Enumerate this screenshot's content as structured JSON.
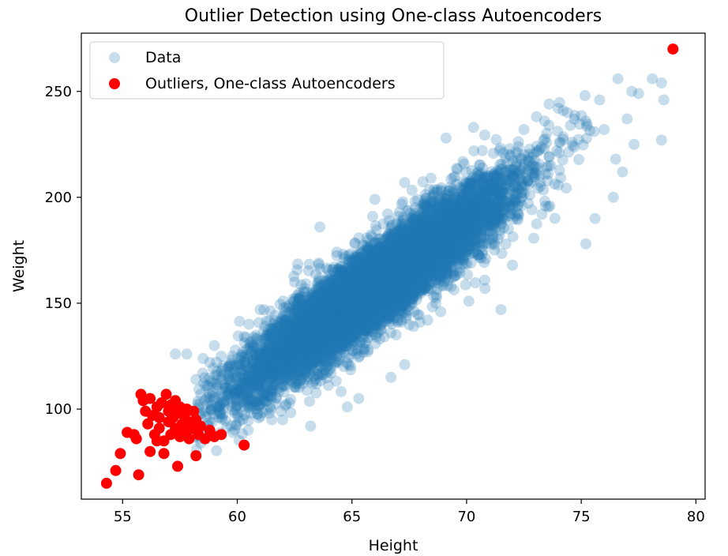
{
  "chart_data": {
    "type": "scatter",
    "title": "Outlier Detection using One-class Autoencoders",
    "xlabel": "Height",
    "ylabel": "Weight",
    "xlim": [
      53.2,
      80.4
    ],
    "ylim": [
      57.5,
      277.5
    ],
    "xticks": [
      55,
      60,
      65,
      70,
      75,
      80
    ],
    "yticks": [
      100,
      150,
      200,
      250
    ],
    "grid": false,
    "legend_position": "top-left",
    "series": [
      {
        "name": "Data",
        "color": "#1f77b4",
        "alpha": 0.25,
        "trend": {
          "slope": 7.7,
          "intercept": -350,
          "residual_sd": 10
        },
        "point_count": 8500,
        "points": [
          [
            57.3,
            126
          ],
          [
            57.8,
            126
          ],
          [
            58.2,
            114
          ],
          [
            58.5,
            117
          ],
          [
            58.8,
            122
          ],
          [
            59.0,
            130
          ],
          [
            59.3,
            125
          ],
          [
            58.6,
            99
          ],
          [
            59.2,
            96
          ],
          [
            59.8,
            89
          ],
          [
            60.2,
            110
          ],
          [
            60.6,
            98
          ],
          [
            61.0,
            147
          ],
          [
            61.5,
            95
          ],
          [
            62.0,
            151
          ],
          [
            62.5,
            160
          ],
          [
            63.2,
            92
          ],
          [
            63.6,
            186
          ],
          [
            64.8,
            101
          ],
          [
            65.3,
            105
          ],
          [
            65.9,
            191
          ],
          [
            66.0,
            199
          ],
          [
            66.7,
            115
          ],
          [
            67.3,
            121
          ],
          [
            67.3,
            207
          ],
          [
            68.3,
            142
          ],
          [
            69.1,
            228
          ],
          [
            70.1,
            151
          ],
          [
            70.3,
            233
          ],
          [
            70.8,
            157
          ],
          [
            71.5,
            147
          ],
          [
            72.0,
            168
          ],
          [
            72.5,
            232
          ],
          [
            73.4,
            236
          ],
          [
            73.6,
            244
          ],
          [
            74.0,
            242
          ],
          [
            74.4,
            240
          ],
          [
            74.6,
            226
          ],
          [
            75.2,
            178
          ],
          [
            75.6,
            190
          ],
          [
            75.8,
            246
          ],
          [
            76.0,
            232
          ],
          [
            76.4,
            200
          ],
          [
            76.5,
            218
          ],
          [
            76.6,
            256
          ],
          [
            76.8,
            212
          ],
          [
            77.0,
            237
          ],
          [
            77.2,
            250
          ],
          [
            77.5,
            249
          ],
          [
            77.3,
            225
          ],
          [
            78.1,
            256
          ],
          [
            78.5,
            227
          ],
          [
            78.6,
            246
          ],
          [
            78.5,
            254
          ]
        ]
      },
      {
        "name": "Outliers, One-class Autoencoders",
        "color": "#ff0000",
        "alpha": 1,
        "points": [
          [
            54.3,
            65
          ],
          [
            54.7,
            71
          ],
          [
            54.9,
            79
          ],
          [
            55.2,
            89
          ],
          [
            55.5,
            88
          ],
          [
            55.6,
            86
          ],
          [
            55.7,
            69
          ],
          [
            55.8,
            107
          ],
          [
            55.9,
            104
          ],
          [
            56.0,
            99
          ],
          [
            56.1,
            93
          ],
          [
            56.2,
            80
          ],
          [
            56.2,
            105
          ],
          [
            56.3,
            97
          ],
          [
            56.4,
            88
          ],
          [
            56.5,
            85
          ],
          [
            56.5,
            101
          ],
          [
            56.6,
            91
          ],
          [
            56.6,
            96
          ],
          [
            56.7,
            103
          ],
          [
            56.8,
            85
          ],
          [
            56.8,
            79
          ],
          [
            56.9,
            107
          ],
          [
            57.0,
            94
          ],
          [
            57.0,
            99
          ],
          [
            57.1,
            88
          ],
          [
            57.1,
            102
          ],
          [
            57.2,
            96
          ],
          [
            57.3,
            91
          ],
          [
            57.3,
            104
          ],
          [
            57.4,
            73
          ],
          [
            57.4,
            98
          ],
          [
            57.5,
            87
          ],
          [
            57.5,
            101
          ],
          [
            57.6,
            93
          ],
          [
            57.7,
            97
          ],
          [
            57.7,
            89
          ],
          [
            57.8,
            100
          ],
          [
            57.9,
            86
          ],
          [
            57.9,
            94
          ],
          [
            58.0,
            91
          ],
          [
            58.1,
            99
          ],
          [
            58.2,
            78
          ],
          [
            58.2,
            95
          ],
          [
            58.3,
            88
          ],
          [
            58.4,
            92
          ],
          [
            58.6,
            86
          ],
          [
            58.8,
            90
          ],
          [
            59.0,
            87
          ],
          [
            59.3,
            88
          ],
          [
            60.3,
            83
          ],
          [
            79.0,
            270
          ]
        ]
      }
    ]
  }
}
